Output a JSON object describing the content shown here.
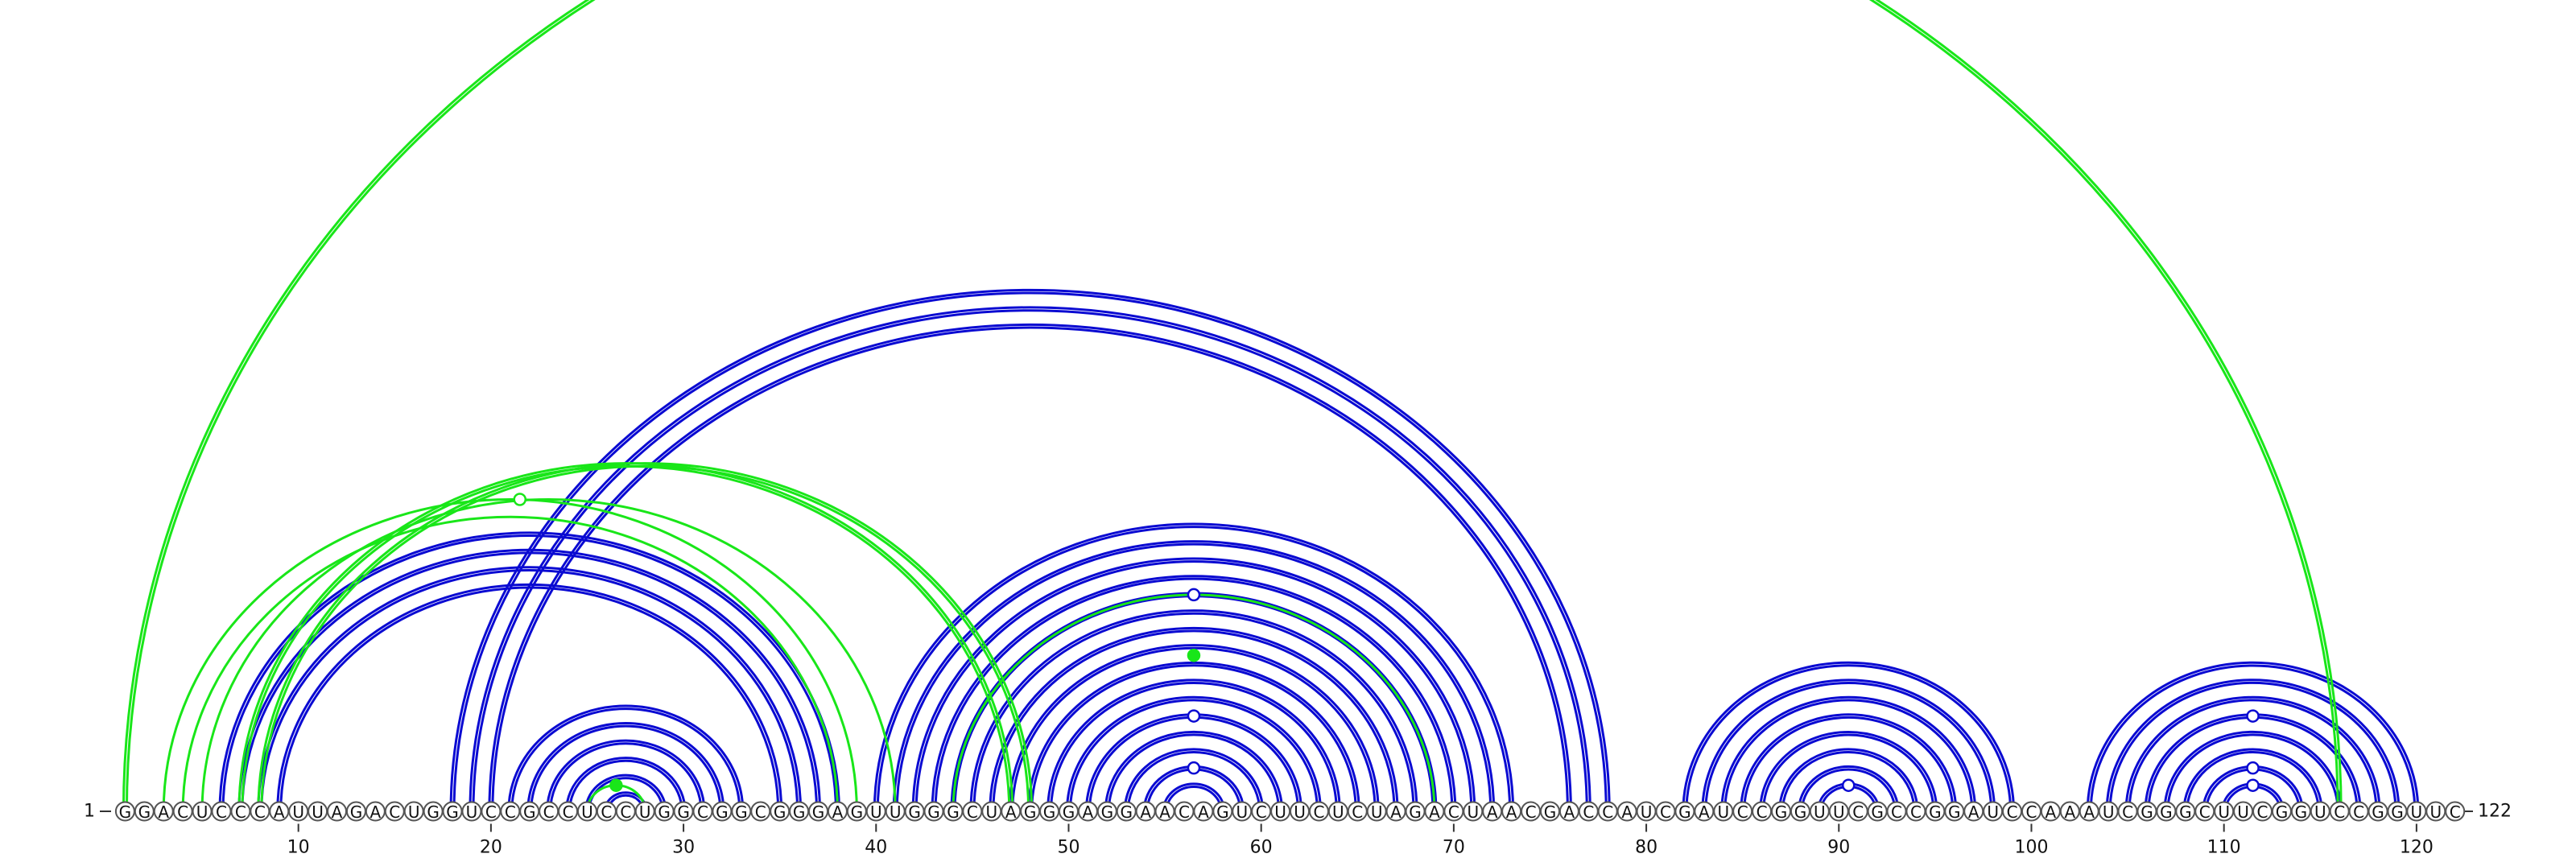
{
  "sequence": "GGACUCCCAUUAGACUGGUCCGCCUCCUGGCGGCGGGAGUUGGGCUAGGGAGGAACAGUCUUCUCUAGACUAACGACCAUCGAUCCGGUUCGCCGGAUCCAAAUCGGGCUUCGGUCCGGUUC",
  "start_label": "1",
  "end_label": "122",
  "axis_ticks": [
    10,
    20,
    30,
    40,
    50,
    60,
    70,
    80,
    90,
    100,
    110,
    120
  ],
  "colors": {
    "blue": "#0a0ad2",
    "green": "#19e619",
    "circle_stroke": "#555555",
    "text": "#111111"
  },
  "arc_groups": [
    {
      "color": "blue",
      "double": true,
      "pairs": [
        [
          6,
          38
        ],
        [
          7,
          37
        ],
        [
          8,
          36
        ],
        [
          9,
          35
        ]
      ]
    },
    {
      "color": "blue",
      "double": true,
      "pairs": [
        [
          18,
          78
        ],
        [
          19,
          77
        ],
        [
          20,
          76
        ]
      ]
    },
    {
      "color": "blue",
      "double": true,
      "pairs": [
        [
          21,
          33
        ],
        [
          22,
          32
        ],
        [
          23,
          31
        ],
        [
          24,
          30
        ],
        [
          25,
          29
        ],
        [
          26,
          28
        ]
      ]
    },
    {
      "color": "blue",
      "double": true,
      "pairs": [
        [
          40,
          73
        ],
        [
          41,
          72
        ],
        [
          42,
          71
        ],
        [
          43,
          70
        ],
        [
          44,
          69
        ],
        [
          45,
          68
        ],
        [
          46,
          67
        ],
        [
          47,
          66
        ]
      ]
    },
    {
      "color": "blue",
      "double": true,
      "pairs": [
        [
          48,
          65
        ],
        [
          49,
          64
        ],
        [
          50,
          63
        ],
        [
          51,
          62
        ],
        [
          52,
          61
        ],
        [
          53,
          60
        ],
        [
          54,
          59
        ],
        [
          55,
          58
        ]
      ]
    },
    {
      "color": "blue",
      "double": true,
      "pairs": [
        [
          82,
          99
        ],
        [
          83,
          98
        ],
        [
          84,
          97
        ],
        [
          85,
          96
        ],
        [
          86,
          95
        ],
        [
          87,
          94
        ],
        [
          88,
          93
        ],
        [
          89,
          92
        ]
      ]
    },
    {
      "color": "blue",
      "double": true,
      "pairs": [
        [
          103,
          120
        ],
        [
          104,
          119
        ],
        [
          105,
          118
        ],
        [
          106,
          117
        ],
        [
          107,
          116
        ],
        [
          108,
          115
        ],
        [
          109,
          114
        ],
        [
          110,
          113
        ]
      ]
    },
    {
      "color": "green",
      "double": true,
      "pairs": [
        [
          1,
          116
        ]
      ]
    },
    {
      "color": "green",
      "double": true,
      "pairs": [
        [
          8,
          48
        ],
        [
          7,
          47
        ]
      ]
    },
    {
      "color": "green",
      "double": false,
      "pairs": [
        [
          3,
          39
        ],
        [
          4,
          38
        ],
        [
          5,
          41
        ]
      ]
    },
    {
      "color": "green",
      "double": false,
      "pairs": [
        [
          25,
          28
        ],
        [
          44,
          69
        ]
      ]
    }
  ],
  "markers": [
    {
      "pos": 56.5,
      "arc_span": 25,
      "color": "blue",
      "filled": false
    },
    {
      "pos": 56.5,
      "arc_span": 18,
      "color": "green",
      "filled": true
    },
    {
      "pos": 56.5,
      "arc_span": 11,
      "color": "blue",
      "filled": false
    },
    {
      "pos": 56.5,
      "arc_span": 5,
      "color": "blue",
      "filled": false
    },
    {
      "pos": 26.5,
      "arc_span": 3,
      "color": "green",
      "filled": true
    },
    {
      "pos": 21.5,
      "arc_span": 36,
      "color": "green",
      "filled": false
    },
    {
      "pos": 90.5,
      "arc_span": 3,
      "color": "blue",
      "filled": false
    },
    {
      "pos": 111.5,
      "arc_span": 11,
      "color": "blue",
      "filled": false
    },
    {
      "pos": 111.5,
      "arc_span": 5,
      "color": "blue",
      "filled": false
    },
    {
      "pos": 111.5,
      "arc_span": 3,
      "color": "blue",
      "filled": false
    }
  ]
}
